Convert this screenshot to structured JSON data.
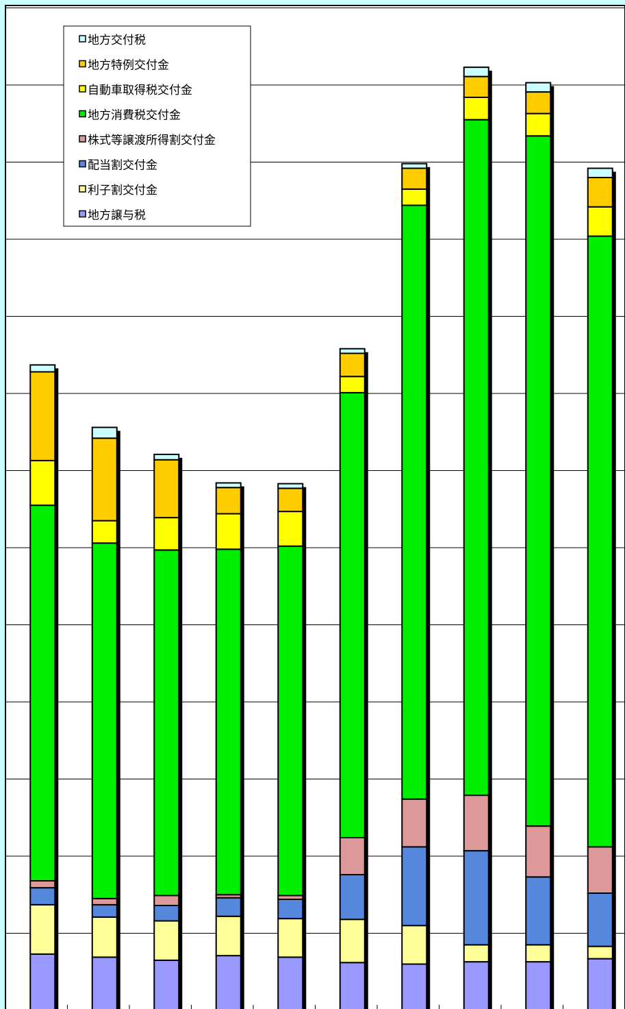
{
  "chart_data": {
    "type": "bar",
    "stacked": true,
    "categories": [
      "",
      "",
      "",
      "",
      "",
      "",
      "",
      "",
      "",
      ""
    ],
    "ylim": [
      0,
      13
    ],
    "grid": true,
    "legend_position": "top-left",
    "series": [
      {
        "name": "地方譲与税",
        "color": "#9999ff",
        "values": [
          0.73,
          0.69,
          0.65,
          0.71,
          0.69,
          0.62,
          0.6,
          0.63,
          0.63,
          0.67
        ]
      },
      {
        "name": "利子割交付金",
        "color": "#ffff99",
        "values": [
          0.64,
          0.52,
          0.51,
          0.51,
          0.5,
          0.56,
          0.5,
          0.22,
          0.22,
          0.16
        ]
      },
      {
        "name": "配当割交付金",
        "color": "#5588dd",
        "values": [
          0.22,
          0.16,
          0.2,
          0.24,
          0.25,
          0.58,
          1.02,
          1.22,
          0.88,
          0.69
        ]
      },
      {
        "name": "株式等譲渡所得割交付金",
        "color": "#dd9999",
        "values": [
          0.09,
          0.08,
          0.13,
          0.04,
          0.05,
          0.48,
          0.62,
          0.72,
          0.66,
          0.6
        ]
      },
      {
        "name": "地方消費税交付金",
        "color": "#00ee00",
        "values": [
          4.87,
          4.61,
          4.48,
          4.48,
          4.53,
          5.77,
          7.7,
          8.76,
          8.95,
          7.92
        ]
      },
      {
        "name": "自動車取得税交付金",
        "color": "#ffff00",
        "values": [
          0.58,
          0.29,
          0.42,
          0.46,
          0.45,
          0.21,
          0.21,
          0.29,
          0.29,
          0.38
        ]
      },
      {
        "name": "地方特例交付金",
        "color": "#ffcc00",
        "values": [
          1.15,
          1.07,
          0.75,
          0.34,
          0.3,
          0.3,
          0.27,
          0.27,
          0.28,
          0.38
        ]
      },
      {
        "name": "地方交付税",
        "color": "#ccffff",
        "values": [
          0.09,
          0.14,
          0.07,
          0.06,
          0.06,
          0.06,
          0.06,
          0.12,
          0.12,
          0.12
        ]
      }
    ]
  }
}
